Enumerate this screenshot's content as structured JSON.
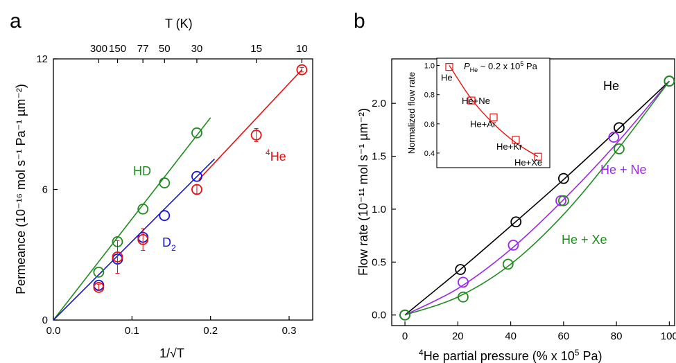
{
  "chart_data": [
    {
      "panel": "a",
      "type": "scatter",
      "xlabel": "1/√T",
      "ylabel": "Permeance (10⁻¹⁶ mol s⁻¹ Pa⁻¹ µm⁻²)",
      "xlim": [
        0,
        0.33
      ],
      "ylim": [
        0,
        12
      ],
      "xticks": [
        "0.0",
        "0.1",
        "0.2",
        "0.3"
      ],
      "xtick_values": [
        0,
        0.1,
        0.2,
        0.3
      ],
      "yticks": [
        "0",
        "6",
        "12"
      ],
      "ytick_values": [
        0,
        6,
        12
      ],
      "top_axis": {
        "label": "T (K)",
        "ticks": [
          "300",
          "150",
          "77",
          "50",
          "30",
          "15",
          "10"
        ],
        "tick_values": [
          300,
          150,
          77,
          50,
          30,
          15,
          10
        ]
      },
      "series": [
        {
          "name": "HD",
          "color": "#1f8b1f",
          "x": [
            0.0577,
            0.0816,
            0.114,
            0.1414,
            0.1826
          ],
          "y": [
            2.2,
            3.6,
            5.1,
            6.3,
            8.6
          ],
          "yerr": [
            0,
            0,
            0,
            0,
            0
          ],
          "fit": {
            "x": [
              0,
              0.2
            ],
            "y": [
              0,
              9.3
            ]
          }
        },
        {
          "name": "D₂",
          "color": "#1414d8",
          "x": [
            0.0577,
            0.0816,
            0.114,
            0.1414,
            0.1826
          ],
          "y": [
            1.6,
            2.8,
            3.8,
            4.8,
            6.6
          ],
          "yerr": [
            0,
            0,
            0,
            0,
            0
          ],
          "fit": {
            "x": [
              0,
              0.205
            ],
            "y": [
              0,
              7.4
            ]
          }
        },
        {
          "name": "⁴He",
          "color": "#e81010",
          "x": [
            0.0577,
            0.0816,
            0.114,
            0.1826,
            0.2582,
            0.3162
          ],
          "y": [
            1.5,
            2.9,
            3.7,
            6.0,
            8.5,
            11.5
          ],
          "yerr": [
            0.15,
            0.75,
            0.5,
            0.2,
            0.3,
            0.1
          ],
          "fit": {
            "x": [
              0.185,
              0.3162
            ],
            "y": [
              6.45,
              11.5
            ]
          }
        }
      ],
      "labels": {
        "hd": "HD",
        "d2_base": "D",
        "d2_sub": "2",
        "he_sup": "4",
        "he_base": "He"
      }
    },
    {
      "panel": "b",
      "type": "scatter",
      "xlabel_sup": "4",
      "xlabel_rest": "He partial pressure (% x 10",
      "xlabel_exp": "5",
      "xlabel_end": " Pa)",
      "ylabel": "Flow rate (10⁻¹¹ mol s⁻¹ µm⁻²)",
      "xlim": [
        -5,
        102
      ],
      "ylim": [
        -0.1,
        2.42
      ],
      "xticks": [
        "0",
        "20",
        "40",
        "60",
        "80",
        "100"
      ],
      "xtick_values": [
        0,
        20,
        40,
        60,
        80,
        100
      ],
      "yticks": [
        "0.0",
        "0.5",
        "1.0",
        "1.5",
        "2.0"
      ],
      "ytick_values": [
        0,
        0.5,
        1.0,
        1.5,
        2.0
      ],
      "series": [
        {
          "name": "He",
          "color": "#000000",
          "x": [
            0,
            21,
            42,
            60,
            81,
            100
          ],
          "y": [
            0,
            0.43,
            0.88,
            1.29,
            1.77,
            2.21
          ],
          "fit_x": [
            0,
            20,
            40,
            60,
            80,
            100
          ],
          "fit_y": [
            0,
            0.41,
            0.84,
            1.28,
            1.74,
            2.21
          ]
        },
        {
          "name": "He + Ne",
          "color": "#9b27e8",
          "x": [
            0,
            22,
            41,
            59,
            79,
            100
          ],
          "y": [
            0,
            0.31,
            0.66,
            1.08,
            1.68,
            2.21
          ],
          "fit_x": [
            0,
            20,
            40,
            60,
            80,
            100
          ],
          "fit_y": [
            0,
            0.25,
            0.62,
            1.09,
            1.62,
            2.21
          ]
        },
        {
          "name": "He + Xe",
          "color": "#1f8b1f",
          "x": [
            0,
            22,
            39,
            60,
            81,
            100
          ],
          "y": [
            0,
            0.17,
            0.48,
            1.08,
            1.57,
            2.21
          ],
          "fit_x": [
            0,
            20,
            40,
            60,
            80,
            100
          ],
          "fit_y": [
            0,
            0.17,
            0.48,
            0.95,
            1.55,
            2.21
          ]
        }
      ],
      "legend_labels": {
        "he": "He",
        "he_ne": "He + Ne",
        "he_xe": "He + Xe"
      },
      "inset": {
        "ylabel": "Normalized flow rate",
        "ylim": [
          0.3,
          1.05
        ],
        "yticks": [
          "0.4",
          "0.6",
          "0.8",
          "1.0"
        ],
        "ytick_values": [
          0.4,
          0.6,
          0.8,
          1.0
        ],
        "condition_P": "P",
        "condition_sub": "He",
        "condition_rest": " ~ 0.2 x 10",
        "condition_exp": "5",
        "condition_end": " Pa",
        "color": "#e81010",
        "points": [
          {
            "label": "He",
            "x": 0,
            "y": 0.99
          },
          {
            "label": "He+Ne",
            "x": 1,
            "y": 0.76
          },
          {
            "label": "He+Ar",
            "x": 2,
            "y": 0.645
          },
          {
            "label": "He+Kr",
            "x": 3,
            "y": 0.49
          },
          {
            "label": "He+Xe",
            "x": 4,
            "y": 0.375
          }
        ],
        "fit_x": [
          0,
          1,
          2,
          3,
          4
        ],
        "fit_y": [
          1.0,
          0.77,
          0.6,
          0.47,
          0.375
        ]
      }
    }
  ],
  "panel_labels": {
    "a": "a",
    "b": "b"
  }
}
